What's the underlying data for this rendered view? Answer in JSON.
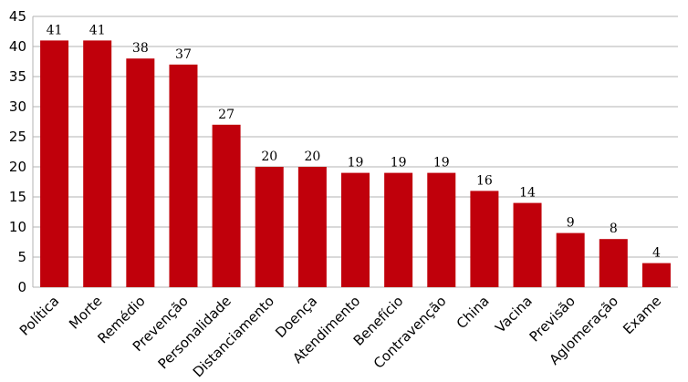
{
  "chart_data": {
    "type": "bar",
    "categories": [
      "Política",
      "Morte",
      "Remédio",
      "Prevenção",
      "Personalidade",
      "Distanciamento",
      "Doença",
      "Atendimento",
      "Benefício",
      "Contravenção",
      "China",
      "Vacina",
      "Previsão",
      "Aglomeração",
      "Exame"
    ],
    "values": [
      41,
      41,
      38,
      37,
      27,
      20,
      20,
      19,
      19,
      19,
      16,
      14,
      9,
      8,
      4
    ],
    "ylim": [
      0,
      45
    ],
    "yticks": [
      0,
      5,
      10,
      15,
      20,
      25,
      30,
      35,
      40,
      45
    ],
    "grid": true,
    "legend": "none",
    "bar_color": "#c0000b",
    "grid_color": "#b3b3b3"
  }
}
